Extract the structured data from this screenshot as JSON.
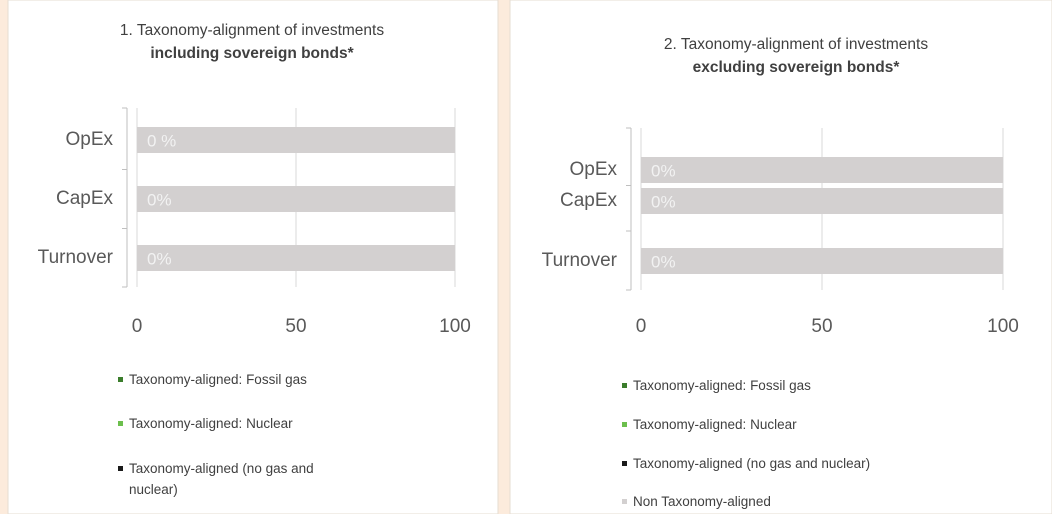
{
  "chart_data": [
    {
      "type": "bar",
      "orientation": "horizontal",
      "stacked": true,
      "title": "1. Taxonomy-alignment of investments",
      "subtitle": "including sovereign bonds*",
      "categories": [
        "OpEx",
        "CapEx",
        "Turnover"
      ],
      "series": [
        {
          "name": "Taxonomy-aligned: Fossil gas",
          "color": "#3b7d2c",
          "values": [
            0,
            0,
            0
          ]
        },
        {
          "name": "Taxonomy-aligned: Nuclear",
          "color": "#6cbf4d",
          "values": [
            0,
            0,
            0
          ]
        },
        {
          "name": "Taxonomy-aligned (no gas and nuclear)",
          "color": "#1a1a1a",
          "values": [
            0,
            0,
            0
          ],
          "value_labels": [
            "0 %",
            "0%",
            "0%"
          ]
        },
        {
          "color": "#d3d0d0",
          "values": [
            100,
            100,
            100
          ]
        }
      ],
      "xlim": [
        0,
        100
      ],
      "xticks": [
        0,
        50,
        100
      ],
      "grid": true
    },
    {
      "type": "bar",
      "orientation": "horizontal",
      "stacked": true,
      "title": "2.  Taxonomy-alignment of investments",
      "subtitle": "excluding sovereign bonds*",
      "categories": [
        "OpEx",
        "CapEx",
        "Turnover"
      ],
      "series": [
        {
          "name": "Taxonomy-aligned: Fossil gas",
          "color": "#3b7d2c",
          "values": [
            0,
            0,
            0
          ]
        },
        {
          "name": "Taxonomy-aligned: Nuclear",
          "color": "#6cbf4d",
          "values": [
            0,
            0,
            0
          ]
        },
        {
          "name": "Taxonomy-aligned (no gas and nuclear)",
          "color": "#1a1a1a",
          "values": [
            0,
            0,
            0
          ],
          "value_labels": [
            "0%",
            "0%",
            "0%"
          ]
        },
        {
          "name": "Non Taxonomy-aligned",
          "color": "#d3d0d0",
          "values": [
            100,
            100,
            100
          ]
        }
      ],
      "xlim": [
        0,
        100
      ],
      "xticks": [
        0,
        50,
        100
      ],
      "grid": true
    }
  ]
}
